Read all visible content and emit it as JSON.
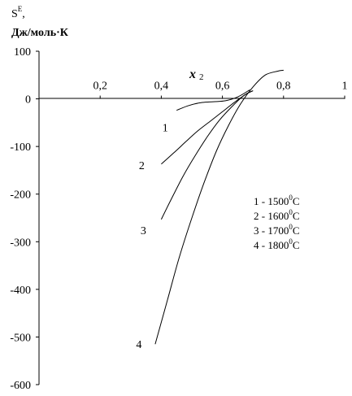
{
  "chart_data": {
    "type": "line",
    "ylabel_main": "S",
    "ylabel_sup": "E",
    "ylabel_comma": ",",
    "ylabel_units": "Дж/моль·К",
    "xlabel_main": "x",
    "xlabel_sub": "2",
    "xlim": [
      0,
      1
    ],
    "ylim": [
      -600,
      100
    ],
    "xticks": [
      0.2,
      0.4,
      0.6,
      0.8,
      1
    ],
    "xtick_labels": [
      "0,2",
      "0,4",
      "0,6",
      "0,8",
      "1"
    ],
    "yticks": [
      100,
      0,
      -100,
      -200,
      -300,
      -400,
      -500,
      -600
    ],
    "ytick_labels": [
      "100",
      "0",
      "-100",
      "-200",
      "-300",
      "-400",
      "-500",
      "-600"
    ],
    "grid": false,
    "legend_position": "right",
    "series": [
      {
        "name": "1",
        "legend_text": "1 - 1500",
        "legend_sup": "0",
        "legend_unit": "C",
        "x": [
          0.45,
          0.49,
          0.53,
          0.57,
          0.61,
          0.65,
          0.69
        ],
        "y": [
          -24,
          -14,
          -8,
          -6,
          -4,
          4,
          19
        ]
      },
      {
        "name": "2",
        "legend_text": "2 - 1600",
        "legend_sup": "0",
        "legend_unit": "C",
        "x": [
          0.4,
          0.44,
          0.48,
          0.52,
          0.56,
          0.6,
          0.64,
          0.68,
          0.7
        ],
        "y": [
          -137,
          -114,
          -90,
          -67,
          -47,
          -27,
          -7,
          11,
          17
        ]
      },
      {
        "name": "3",
        "legend_text": "3 - 1700",
        "legend_sup": "0",
        "legend_unit": "C",
        "x": [
          0.4,
          0.43,
          0.47,
          0.51,
          0.55,
          0.59,
          0.63,
          0.67,
          0.7
        ],
        "y": [
          -253,
          -214,
          -164,
          -120,
          -80,
          -45,
          -17,
          7,
          17
        ]
      },
      {
        "name": "4",
        "legend_text": "4 - 1800",
        "legend_sup": "0",
        "legend_unit": "C",
        "x": [
          0.38,
          0.42,
          0.46,
          0.5,
          0.54,
          0.58,
          0.62,
          0.66,
          0.7,
          0.74,
          0.78,
          0.8
        ],
        "y": [
          -515,
          -423,
          -330,
          -250,
          -176,
          -110,
          -56,
          -10,
          25,
          50,
          58,
          60
        ]
      }
    ]
  }
}
